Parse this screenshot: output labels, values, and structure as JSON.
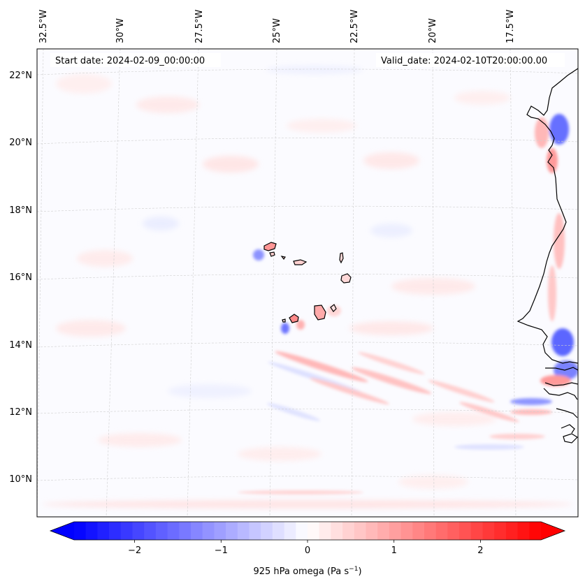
{
  "map": {
    "start_label": "Start date: 2024-02-09_00:00:00",
    "valid_label": "Valid_date: 2024-02-10T20:00:00.00",
    "lon_labels": [
      "32.5°W",
      "30°W",
      "27.5°W",
      "25°W",
      "22.5°W",
      "20°W",
      "17.5°W"
    ],
    "lat_labels": [
      "22°N",
      "20°N",
      "18°N",
      "16°N",
      "14°N",
      "12°N",
      "10°N"
    ],
    "gridlines": true
  },
  "colorbar": {
    "label": "925 hPa omega (Pa s",
    "label_exp": "−1",
    "label_close": ")",
    "ticks": [
      "−2",
      "−1",
      "0",
      "1",
      "2"
    ],
    "range": [
      -2.7,
      2.7
    ],
    "extend": "both",
    "colors": {
      "negative": "#0000ff",
      "zero": "#ffffff",
      "positive": "#ff0000"
    }
  },
  "chart_data": {
    "type": "heatmap",
    "variable": "925 hPa omega",
    "units": "Pa s⁻¹",
    "colormap": "bwr",
    "vmin": -2.7,
    "vmax": 2.7
  }
}
